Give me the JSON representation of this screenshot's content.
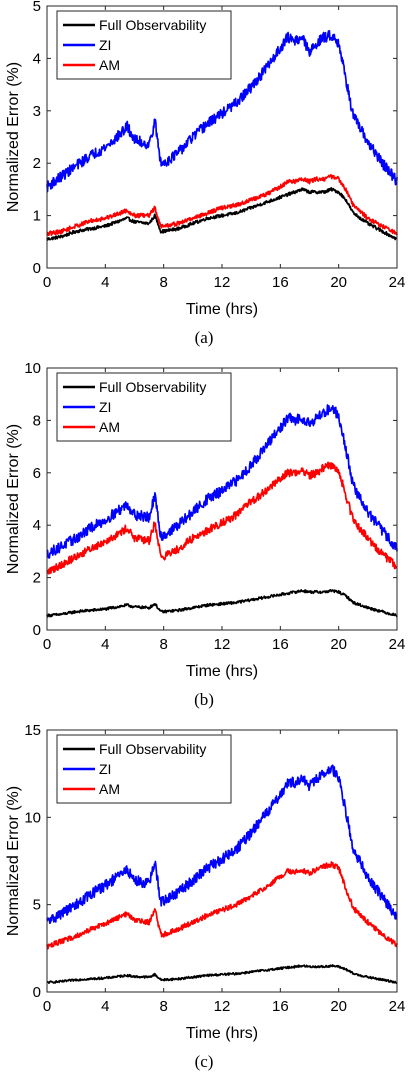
{
  "chart_data": [
    {
      "type": "line",
      "caption": "(a)",
      "xlabel": "Time (hrs)",
      "ylabel": "Normalized Error (%)",
      "xlim": [
        0,
        24
      ],
      "ylim": [
        0,
        5
      ],
      "xticks": [
        0,
        4,
        8,
        12,
        16,
        20,
        24
      ],
      "yticks": [
        0,
        1,
        2,
        3,
        4,
        5
      ],
      "grid": false,
      "legend": "top-left",
      "x": [
        0,
        1,
        2,
        3,
        4,
        5,
        5.5,
        6,
        7,
        7.4,
        7.8,
        8,
        9,
        10,
        11,
        12,
        13,
        14,
        15,
        16,
        16.5,
        17,
        17.5,
        18,
        18.5,
        19,
        19.5,
        20,
        20.5,
        21,
        22,
        23,
        24
      ],
      "series": [
        {
          "name": "Full Observability",
          "color": "#000000",
          "noise": 0.03,
          "values": [
            0.55,
            0.6,
            0.7,
            0.75,
            0.8,
            0.9,
            0.95,
            0.88,
            0.85,
            1.0,
            0.7,
            0.7,
            0.75,
            0.85,
            0.95,
            1.0,
            1.05,
            1.15,
            1.25,
            1.35,
            1.4,
            1.45,
            1.5,
            1.45,
            1.45,
            1.45,
            1.5,
            1.45,
            1.3,
            1.05,
            0.85,
            0.7,
            0.55
          ]
        },
        {
          "name": "ZI",
          "color": "#0000ff",
          "noise": 0.1,
          "values": [
            1.55,
            1.75,
            1.95,
            2.15,
            2.3,
            2.55,
            2.7,
            2.45,
            2.35,
            2.8,
            2.0,
            2.0,
            2.2,
            2.5,
            2.75,
            2.95,
            3.15,
            3.45,
            3.8,
            4.2,
            4.4,
            4.35,
            4.4,
            4.1,
            4.3,
            4.4,
            4.45,
            4.3,
            3.6,
            2.9,
            2.4,
            2.0,
            1.65
          ]
        },
        {
          "name": "AM",
          "color": "#ff0000",
          "noise": 0.04,
          "values": [
            0.65,
            0.7,
            0.8,
            0.9,
            0.95,
            1.05,
            1.1,
            1.0,
            1.0,
            1.15,
            0.8,
            0.8,
            0.85,
            0.95,
            1.05,
            1.15,
            1.2,
            1.3,
            1.4,
            1.55,
            1.65,
            1.65,
            1.7,
            1.65,
            1.7,
            1.7,
            1.75,
            1.7,
            1.5,
            1.2,
            0.95,
            0.8,
            0.65
          ]
        }
      ]
    },
    {
      "type": "line",
      "caption": "(b)",
      "xlabel": "Time (hrs)",
      "ylabel": "Normalized Error (%)",
      "xlim": [
        0,
        24
      ],
      "ylim": [
        0,
        10
      ],
      "xticks": [
        0,
        4,
        8,
        12,
        16,
        20,
        24
      ],
      "yticks": [
        0,
        2,
        4,
        6,
        8,
        10
      ],
      "grid": false,
      "legend": "top-left",
      "x": [
        0,
        1,
        2,
        3,
        4,
        5,
        5.5,
        6,
        7,
        7.4,
        7.8,
        8,
        9,
        10,
        11,
        12,
        13,
        14,
        15,
        16,
        16.5,
        17,
        17.5,
        18,
        18.5,
        19,
        19.5,
        20,
        20.5,
        21,
        22,
        23,
        24
      ],
      "series": [
        {
          "name": "Full Observability",
          "color": "#000000",
          "noise": 0.05,
          "values": [
            0.55,
            0.6,
            0.7,
            0.75,
            0.8,
            0.9,
            0.95,
            0.88,
            0.85,
            1.0,
            0.7,
            0.7,
            0.75,
            0.85,
            0.95,
            1.0,
            1.05,
            1.15,
            1.25,
            1.35,
            1.4,
            1.45,
            1.5,
            1.45,
            1.45,
            1.45,
            1.5,
            1.45,
            1.3,
            1.05,
            0.85,
            0.7,
            0.55
          ]
        },
        {
          "name": "ZI",
          "color": "#0000ff",
          "noise": 0.2,
          "values": [
            2.9,
            3.2,
            3.5,
            3.9,
            4.2,
            4.6,
            4.8,
            4.4,
            4.3,
            5.1,
            3.6,
            3.6,
            4.0,
            4.5,
            5.0,
            5.3,
            5.7,
            6.3,
            7.0,
            7.7,
            8.1,
            8.0,
            8.1,
            7.9,
            8.1,
            8.3,
            8.5,
            8.2,
            6.9,
            5.5,
            4.5,
            3.8,
            3.1
          ]
        },
        {
          "name": "AM",
          "color": "#ff0000",
          "noise": 0.15,
          "values": [
            2.2,
            2.5,
            2.8,
            3.1,
            3.4,
            3.7,
            3.9,
            3.5,
            3.4,
            4.1,
            2.8,
            2.8,
            3.1,
            3.5,
            3.8,
            4.1,
            4.4,
            4.9,
            5.3,
            5.8,
            6.0,
            6.0,
            6.1,
            5.9,
            6.0,
            6.2,
            6.3,
            6.1,
            5.1,
            4.2,
            3.5,
            2.9,
            2.4
          ]
        }
      ]
    },
    {
      "type": "line",
      "caption": "(c)",
      "xlabel": "Time (hrs)",
      "ylabel": "Normalized Error (%)",
      "xlim": [
        0,
        24
      ],
      "ylim": [
        0,
        15
      ],
      "xticks": [
        0,
        4,
        8,
        12,
        16,
        20,
        24
      ],
      "yticks": [
        0,
        5,
        10,
        15
      ],
      "grid": false,
      "legend": "top-left",
      "x": [
        0,
        1,
        2,
        3,
        4,
        5,
        5.5,
        6,
        7,
        7.4,
        7.8,
        8,
        9,
        10,
        11,
        12,
        13,
        14,
        15,
        16,
        16.5,
        17,
        17.5,
        18,
        18.5,
        19,
        19.5,
        20,
        20.5,
        21,
        22,
        23,
        24
      ],
      "series": [
        {
          "name": "Full Observability",
          "color": "#000000",
          "noise": 0.06,
          "values": [
            0.55,
            0.6,
            0.7,
            0.75,
            0.8,
            0.9,
            0.95,
            0.88,
            0.85,
            1.0,
            0.7,
            0.7,
            0.75,
            0.85,
            0.95,
            1.0,
            1.05,
            1.15,
            1.25,
            1.35,
            1.4,
            1.45,
            1.5,
            1.45,
            1.45,
            1.45,
            1.5,
            1.45,
            1.3,
            1.05,
            0.85,
            0.7,
            0.55
          ]
        },
        {
          "name": "ZI",
          "color": "#0000ff",
          "noise": 0.3,
          "values": [
            4.0,
            4.5,
            5.0,
            5.6,
            6.1,
            6.7,
            7.0,
            6.4,
            6.2,
            7.4,
            5.2,
            5.2,
            5.7,
            6.4,
            7.1,
            7.6,
            8.2,
            9.1,
            10.2,
            11.3,
            12.0,
            12.0,
            12.2,
            11.8,
            12.2,
            12.5,
            12.8,
            12.3,
            10.3,
            8.2,
            6.6,
            5.4,
            4.3
          ]
        },
        {
          "name": "AM",
          "color": "#ff0000",
          "noise": 0.15,
          "values": [
            2.6,
            2.9,
            3.2,
            3.6,
            3.9,
            4.3,
            4.5,
            4.1,
            4.0,
            4.7,
            3.3,
            3.3,
            3.6,
            4.0,
            4.4,
            4.7,
            5.0,
            5.5,
            6.0,
            6.6,
            6.9,
            6.9,
            7.0,
            6.8,
            7.0,
            7.2,
            7.3,
            7.1,
            5.9,
            4.8,
            4.0,
            3.3,
            2.7
          ]
        }
      ]
    }
  ]
}
